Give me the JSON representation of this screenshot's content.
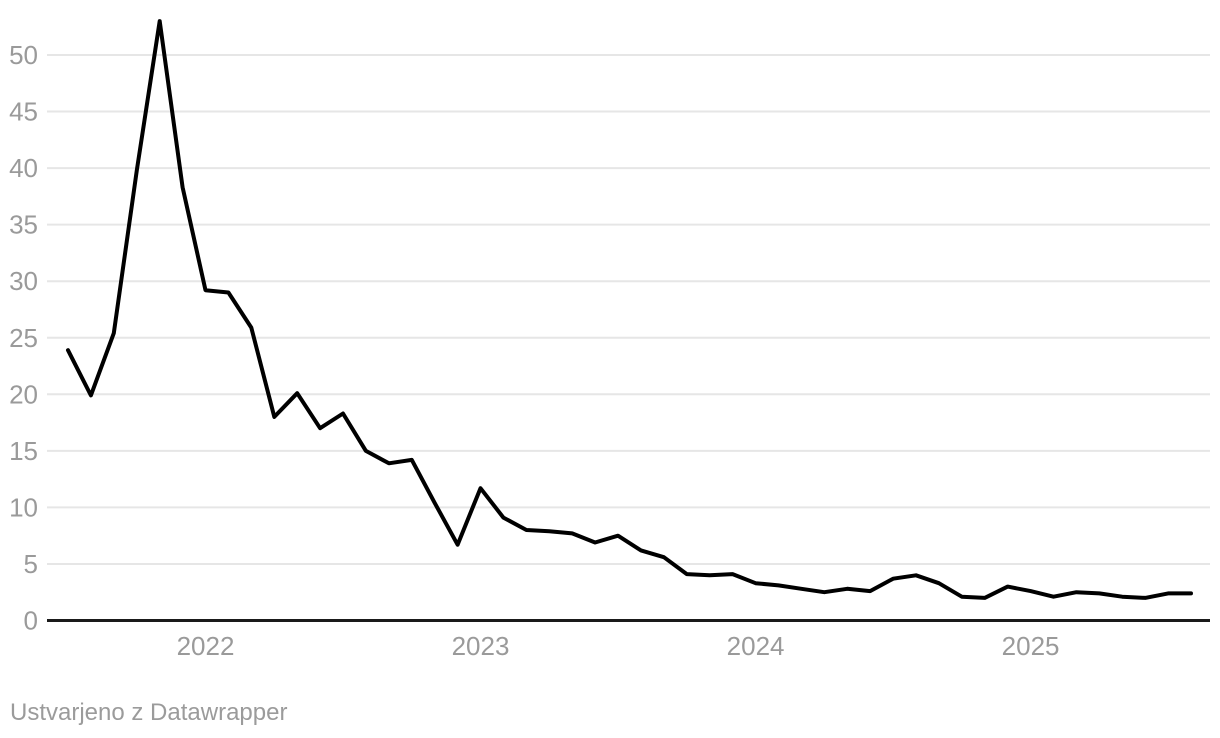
{
  "chart_data": {
    "type": "line",
    "title": "",
    "xlabel": "",
    "ylabel": "",
    "x": [
      "2021-07",
      "2021-08",
      "2021-09",
      "2021-10",
      "2021-11",
      "2021-12",
      "2022-01",
      "2022-02",
      "2022-03",
      "2022-04",
      "2022-05",
      "2022-06",
      "2022-07",
      "2022-08",
      "2022-09",
      "2022-10",
      "2022-11",
      "2022-12",
      "2023-01",
      "2023-02",
      "2023-03",
      "2023-04",
      "2023-05",
      "2023-06",
      "2023-07",
      "2023-08",
      "2023-09",
      "2023-10",
      "2023-11",
      "2023-12",
      "2024-01",
      "2024-02",
      "2024-03",
      "2024-04",
      "2024-05",
      "2024-06",
      "2024-07",
      "2024-08",
      "2024-09",
      "2024-10",
      "2024-11",
      "2024-12",
      "2025-01",
      "2025-02",
      "2025-03",
      "2025-04",
      "2025-05",
      "2025-06",
      "2025-07",
      "2025-08"
    ],
    "values": [
      23.9,
      19.9,
      25.4,
      39.8,
      53,
      38.3,
      29.2,
      29,
      25.9,
      18,
      20.1,
      17,
      18.3,
      15,
      13.9,
      14.2,
      10.4,
      6.7,
      11.7,
      9.1,
      8,
      7.9,
      7.7,
      6.9,
      7.5,
      6.2,
      5.6,
      4.1,
      4,
      4.1,
      3.3,
      3.1,
      2.8,
      2.5,
      2.8,
      2.6,
      3.7,
      4,
      3.3,
      2.1,
      2,
      3,
      2.6,
      2.1,
      2.5,
      2.4,
      2.1,
      2,
      2.4,
      2.4
    ],
    "x_tick_labels": [
      "2022",
      "2023",
      "2024",
      "2025"
    ],
    "y_ticks": [
      0,
      5,
      10,
      15,
      20,
      25,
      30,
      35,
      40,
      45,
      50
    ],
    "ylim": [
      0,
      53
    ],
    "grid": "horizontal",
    "legend": "none",
    "line_color": "#000000"
  },
  "colors": {
    "line": "#000000",
    "axis": "#1a1a1a",
    "grid": "#e6e6e6",
    "tick_label": "#9a9a9a",
    "attribution_text": "#9b9b9b",
    "background": "#ffffff"
  },
  "footer": {
    "text": "Ustvarjeno z Datawrapper"
  }
}
